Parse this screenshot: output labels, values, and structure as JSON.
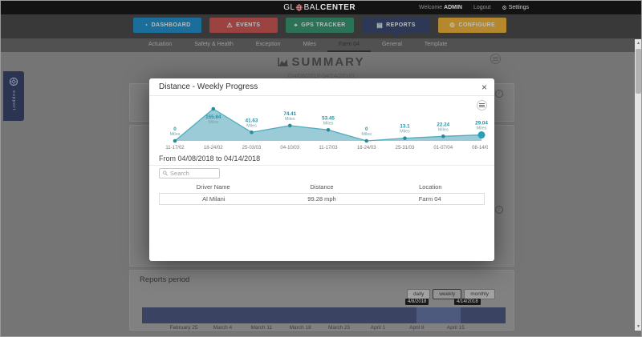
{
  "icons": {
    "gauge-icon": "◔",
    "warning-icon": "⚠",
    "location-icon": "⌖",
    "report-icon": "▤",
    "configure-icon": "⚙",
    "wrench-icon": "⚙",
    "close-icon": "×",
    "info-icon": "i",
    "scroll-up-icon": "▲",
    "scroll-down-icon": "▼"
  },
  "header": {
    "logo_prefix": "GL",
    "logo_mid": "BAL",
    "logo_bold": "CENTER",
    "welcome": "Welcome",
    "username": "ADMIN",
    "logout": "Logout",
    "settings": "Settings"
  },
  "nav": {
    "buttons": [
      {
        "label": "DASHBOARD",
        "icon": "gauge-icon",
        "color": "#1b6e9a",
        "active": false
      },
      {
        "label": "EVENTS",
        "icon": "warning-icon",
        "color": "#9c4341",
        "active": false
      },
      {
        "label": "GPS TRACKER",
        "icon": "location-icon",
        "color": "#2c7257",
        "active": false
      },
      {
        "label": "REPORTS",
        "icon": "report-icon",
        "color": "#2c3855",
        "active": true
      },
      {
        "label": "CONFIGURE",
        "icon": "configure-icon",
        "color": "#b5882d",
        "active": false
      }
    ]
  },
  "subnav": {
    "tabs": [
      {
        "label": "Actuation",
        "active": false
      },
      {
        "label": "Safety & Health",
        "active": false
      },
      {
        "label": "Exception",
        "active": false
      },
      {
        "label": "Miles",
        "active": false
      },
      {
        "label": "Farm 04",
        "active": true
      },
      {
        "label": "General",
        "active": false
      },
      {
        "label": "Template",
        "active": false
      }
    ]
  },
  "page": {
    "title": "SUMMARY",
    "subtitle": "(04/08/2018-04/14/2018)"
  },
  "side_tab": {
    "label": "support"
  },
  "modal": {
    "title": "Distance - Weekly Progress",
    "range_text": "From 04/08/2018 to 04/14/2018",
    "search_placeholder": "Search",
    "table": {
      "headers": [
        "Driver Name",
        "Distance",
        "Location"
      ],
      "rows": [
        [
          "Al Milani",
          "99.28 mph",
          "Farm 04"
        ]
      ]
    }
  },
  "chart_data": [
    {
      "type": "area",
      "title": "Distance - Weekly Progress",
      "x": [
        "11-17/02",
        "18-24/02",
        "25-03/03",
        "04-10/03",
        "11-17/03",
        "18-24/03",
        "25-31/03",
        "01-07/04",
        "08-14/04"
      ],
      "values": [
        0,
        155.84,
        41.63,
        74.41,
        53.45,
        0,
        13.1,
        22.24,
        29.04
      ],
      "unit": "Miles",
      "ylim": [
        0,
        160
      ],
      "grid": false,
      "legend": "none",
      "selected_point_index": 8,
      "colors": {
        "line": "#4fadbf",
        "fill": "#8fc5d3",
        "marker": "#2b8b9c",
        "selected_marker": "#2aa0b4",
        "value_label": "#1d93a5",
        "unit_label": "#7fa2a8",
        "axis_label": "#777777"
      }
    },
    {
      "type": "timeline",
      "categories": [
        "February 25",
        "March 4",
        "March 11",
        "March 18",
        "March 25",
        "April 1",
        "April 8",
        "April 15"
      ],
      "selected_range_labels": [
        "4/8/2018",
        "4/14/2018"
      ],
      "bar_color": "#3a4361",
      "selected_color": "#4d5a7d"
    }
  ],
  "reports_period": {
    "title": "Reports period",
    "buttons": [
      {
        "label": "daily",
        "active": false
      },
      {
        "label": "weekly",
        "active": true
      },
      {
        "label": "monthly",
        "active": false
      }
    ]
  }
}
